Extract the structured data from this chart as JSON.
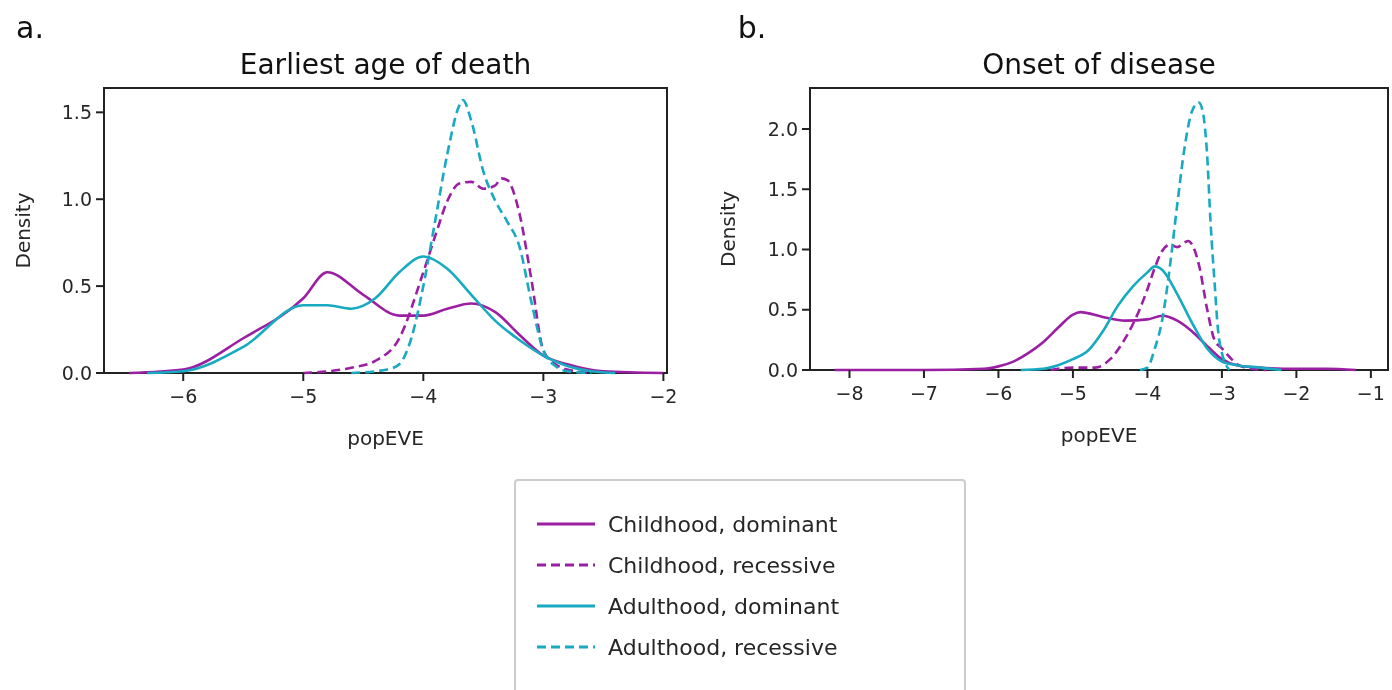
{
  "chart_data": [
    {
      "type": "line",
      "title": "Earliest age of death",
      "xlabel": "popEVE",
      "ylabel": "Density",
      "annotations": [
        "a."
      ],
      "xlim": [
        -6.66,
        -1.97
      ],
      "ylim": [
        0,
        1.64
      ],
      "xticks": [
        {
          "value": -6,
          "label": "−6"
        },
        {
          "value": -5,
          "label": "−5"
        },
        {
          "value": -4,
          "label": "−4"
        },
        {
          "value": -3,
          "label": "−3"
        },
        {
          "value": -2,
          "label": "−2"
        }
      ],
      "yticks": [
        {
          "value": 0,
          "label": "0.0"
        },
        {
          "value": 0.5,
          "label": "0.5"
        },
        {
          "value": 1,
          "label": "1.0"
        },
        {
          "value": 1.5,
          "label": "1.5"
        }
      ],
      "grid": false,
      "legend": "bottom",
      "marker": "none",
      "series": [
        {
          "name": "Childhood, dominant",
          "color": "#9b1fa3",
          "line_style": "solid",
          "x": [
            -6.45,
            -6.0,
            -5.5,
            -5.0,
            -4.8,
            -4.5,
            -4.2,
            -4.0,
            -3.8,
            -3.6,
            -3.4,
            -3.2,
            -3.0,
            -2.8,
            -2.5,
            -2.0
          ],
          "values": [
            0,
            0.02,
            0.2,
            0.43,
            0.58,
            0.45,
            0.33,
            0.33,
            0.37,
            0.4,
            0.35,
            0.22,
            0.1,
            0.05,
            0.01,
            0
          ]
        },
        {
          "name": "Childhood, recessive",
          "color": "#9b1fa3",
          "line_style": "dashed",
          "x": [
            -5.0,
            -4.6,
            -4.4,
            -4.2,
            -4.0,
            -3.9,
            -3.8,
            -3.7,
            -3.6,
            -3.5,
            -3.4,
            -3.35,
            -3.3,
            -3.2,
            -3.1,
            -3.0,
            -2.9,
            -2.8,
            -2.6
          ],
          "values": [
            0,
            0.03,
            0.07,
            0.2,
            0.58,
            0.79,
            0.99,
            1.09,
            1.1,
            1.06,
            1.08,
            1.12,
            1.11,
            0.92,
            0.54,
            0.13,
            0.05,
            0.02,
            0
          ]
        },
        {
          "name": "Adulthood, dominant",
          "color": "#17aac0",
          "line_style": "solid",
          "x": [
            -6.3,
            -6.0,
            -5.5,
            -5.0,
            -4.8,
            -4.6,
            -4.4,
            -4.2,
            -4.0,
            -3.8,
            -3.6,
            -3.4,
            -3.2,
            -3.0,
            -2.8,
            -2.6,
            -2.4
          ],
          "values": [
            0,
            0.01,
            0.15,
            0.39,
            0.39,
            0.37,
            0.43,
            0.58,
            0.67,
            0.6,
            0.45,
            0.3,
            0.19,
            0.1,
            0.04,
            0.01,
            0
          ]
        },
        {
          "name": "Adulthood, recessive",
          "color": "#17aac0",
          "line_style": "dashed",
          "x": [
            -4.6,
            -4.3,
            -4.2,
            -4.1,
            -4.0,
            -3.9,
            -3.8,
            -3.7,
            -3.67,
            -3.6,
            -3.5,
            -3.4,
            -3.3,
            -3.2,
            -3.1,
            -3.0,
            -2.9,
            -2.8,
            -2.6
          ],
          "values": [
            0,
            0.02,
            0.05,
            0.2,
            0.5,
            0.88,
            1.26,
            1.54,
            1.57,
            1.45,
            1.16,
            0.99,
            0.87,
            0.73,
            0.41,
            0.13,
            0.04,
            0.01,
            0
          ]
        }
      ]
    },
    {
      "type": "line",
      "title": "Onset of disease",
      "xlabel": "popEVE",
      "ylabel": "Density",
      "annotations": [
        "b."
      ],
      "xlim": [
        -8.53,
        -0.77
      ],
      "ylim": [
        0,
        2.34
      ],
      "xticks": [
        {
          "value": -8,
          "label": "−8"
        },
        {
          "value": -7,
          "label": "−7"
        },
        {
          "value": -6,
          "label": "−6"
        },
        {
          "value": -5,
          "label": "−5"
        },
        {
          "value": -4,
          "label": "−4"
        },
        {
          "value": -3,
          "label": "−3"
        },
        {
          "value": -2,
          "label": "−2"
        },
        {
          "value": -1,
          "label": "−1"
        }
      ],
      "yticks": [
        {
          "value": 0,
          "label": "0.0"
        },
        {
          "value": 0.5,
          "label": "0.5"
        },
        {
          "value": 1,
          "label": "1.0"
        },
        {
          "value": 1.5,
          "label": "1.5"
        },
        {
          "value": 2,
          "label": "2.0"
        }
      ],
      "grid": false,
      "marker": "none",
      "series": [
        {
          "color": "#9b1fa3",
          "line_style": "solid",
          "x": [
            -8.2,
            -7.0,
            -6.2,
            -6.0,
            -5.8,
            -5.6,
            -5.4,
            -5.2,
            -5.0,
            -4.9,
            -4.6,
            -4.3,
            -4.0,
            -3.8,
            -3.6,
            -3.4,
            -3.2,
            -3.0,
            -2.8,
            -2.5,
            -2.0,
            -1.6,
            -1.2
          ],
          "values": [
            0,
            0,
            0.01,
            0.03,
            0.07,
            0.14,
            0.23,
            0.35,
            0.46,
            0.48,
            0.44,
            0.41,
            0.42,
            0.45,
            0.41,
            0.32,
            0.2,
            0.09,
            0.04,
            0.02,
            0.01,
            0.01,
            0
          ]
        },
        {
          "color": "#9b1fa3",
          "line_style": "dashed",
          "x": [
            -5.3,
            -5.2,
            -5.0,
            -4.7,
            -4.5,
            -4.3,
            -4.1,
            -4.0,
            -3.9,
            -3.8,
            -3.7,
            -3.6,
            -3.5,
            -3.45,
            -3.4,
            -3.3,
            -3.2,
            -3.1,
            -3.0,
            -2.9,
            -2.8,
            -2.6,
            -2.4
          ],
          "values": [
            0,
            0.01,
            0.02,
            0.02,
            0.09,
            0.26,
            0.51,
            0.67,
            0.85,
            0.99,
            1.04,
            1.02,
            1.06,
            1.07,
            1.04,
            0.85,
            0.51,
            0.25,
            0.18,
            0.11,
            0.05,
            0.01,
            0
          ]
        },
        {
          "color": "#17aac0",
          "line_style": "solid",
          "x": [
            -5.7,
            -5.4,
            -5.2,
            -5.0,
            -4.8,
            -4.6,
            -4.4,
            -4.2,
            -4.0,
            -3.9,
            -3.8,
            -3.6,
            -3.4,
            -3.2,
            -3.0,
            -2.8,
            -2.5,
            -2.2
          ],
          "values": [
            0,
            0.01,
            0.04,
            0.09,
            0.16,
            0.32,
            0.53,
            0.69,
            0.81,
            0.86,
            0.83,
            0.63,
            0.39,
            0.18,
            0.07,
            0.04,
            0.02,
            0
          ]
        },
        {
          "color": "#17aac0",
          "line_style": "dashed",
          "x": [
            -4.1,
            -4.0,
            -3.9,
            -3.8,
            -3.7,
            -3.6,
            -3.5,
            -3.4,
            -3.31,
            -3.25,
            -3.2,
            -3.15,
            -3.1,
            -3.05,
            -3.0,
            -2.95,
            -2.9
          ],
          "values": [
            0,
            0.02,
            0.18,
            0.42,
            0.85,
            1.37,
            1.85,
            2.15,
            2.22,
            2.12,
            1.8,
            1.2,
            0.74,
            0.32,
            0.14,
            0.05,
            0
          ]
        }
      ]
    }
  ]
}
